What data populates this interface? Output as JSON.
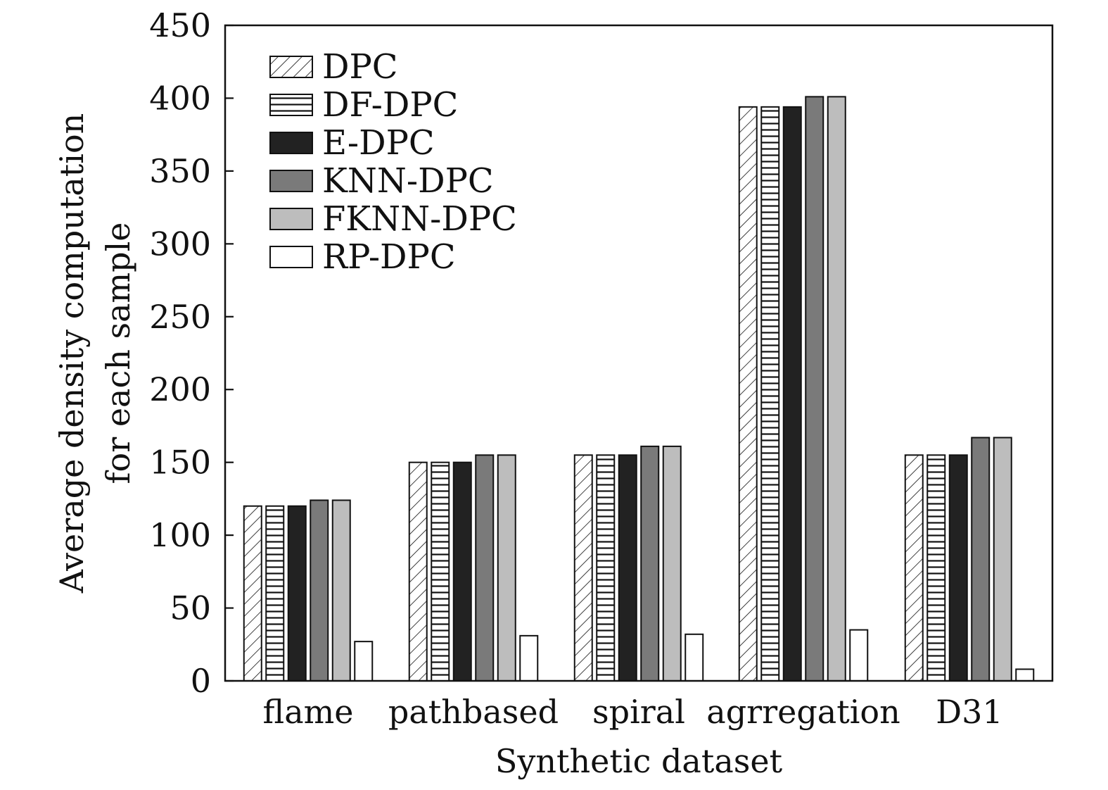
{
  "chart_data": {
    "type": "bar",
    "xlabel": "Synthetic dataset",
    "ylabel_lines": [
      "Average density computation",
      "for each sample"
    ],
    "ylim": [
      0,
      450
    ],
    "yticks": [
      0,
      50,
      100,
      150,
      200,
      250,
      300,
      350,
      400,
      450
    ],
    "grid": false,
    "legend_position": "top-left",
    "categories": [
      "flame",
      "pathbased",
      "spiral",
      "agrregation",
      "D31"
    ],
    "series": [
      {
        "name": "DPC",
        "pattern": "diagonal-hatch",
        "color": "#ffffff",
        "values": [
          120,
          150,
          155,
          394,
          155
        ]
      },
      {
        "name": "DF-DPC",
        "pattern": "horizontal-hatch",
        "color": "#ffffff",
        "values": [
          120,
          150,
          155,
          394,
          155
        ]
      },
      {
        "name": "E-DPC",
        "pattern": "solid",
        "color": "#222222",
        "values": [
          120,
          150,
          155,
          394,
          155
        ]
      },
      {
        "name": "KNN-DPC",
        "pattern": "solid",
        "color": "#7a7a7a",
        "values": [
          124,
          155,
          161,
          401,
          167
        ]
      },
      {
        "name": "FKNN-DPC",
        "pattern": "solid",
        "color": "#bdbdbd",
        "values": [
          124,
          155,
          161,
          401,
          167
        ]
      },
      {
        "name": "RP-DPC",
        "pattern": "solid",
        "color": "#ffffff",
        "values": [
          27,
          31,
          32,
          35,
          8
        ]
      }
    ]
  }
}
